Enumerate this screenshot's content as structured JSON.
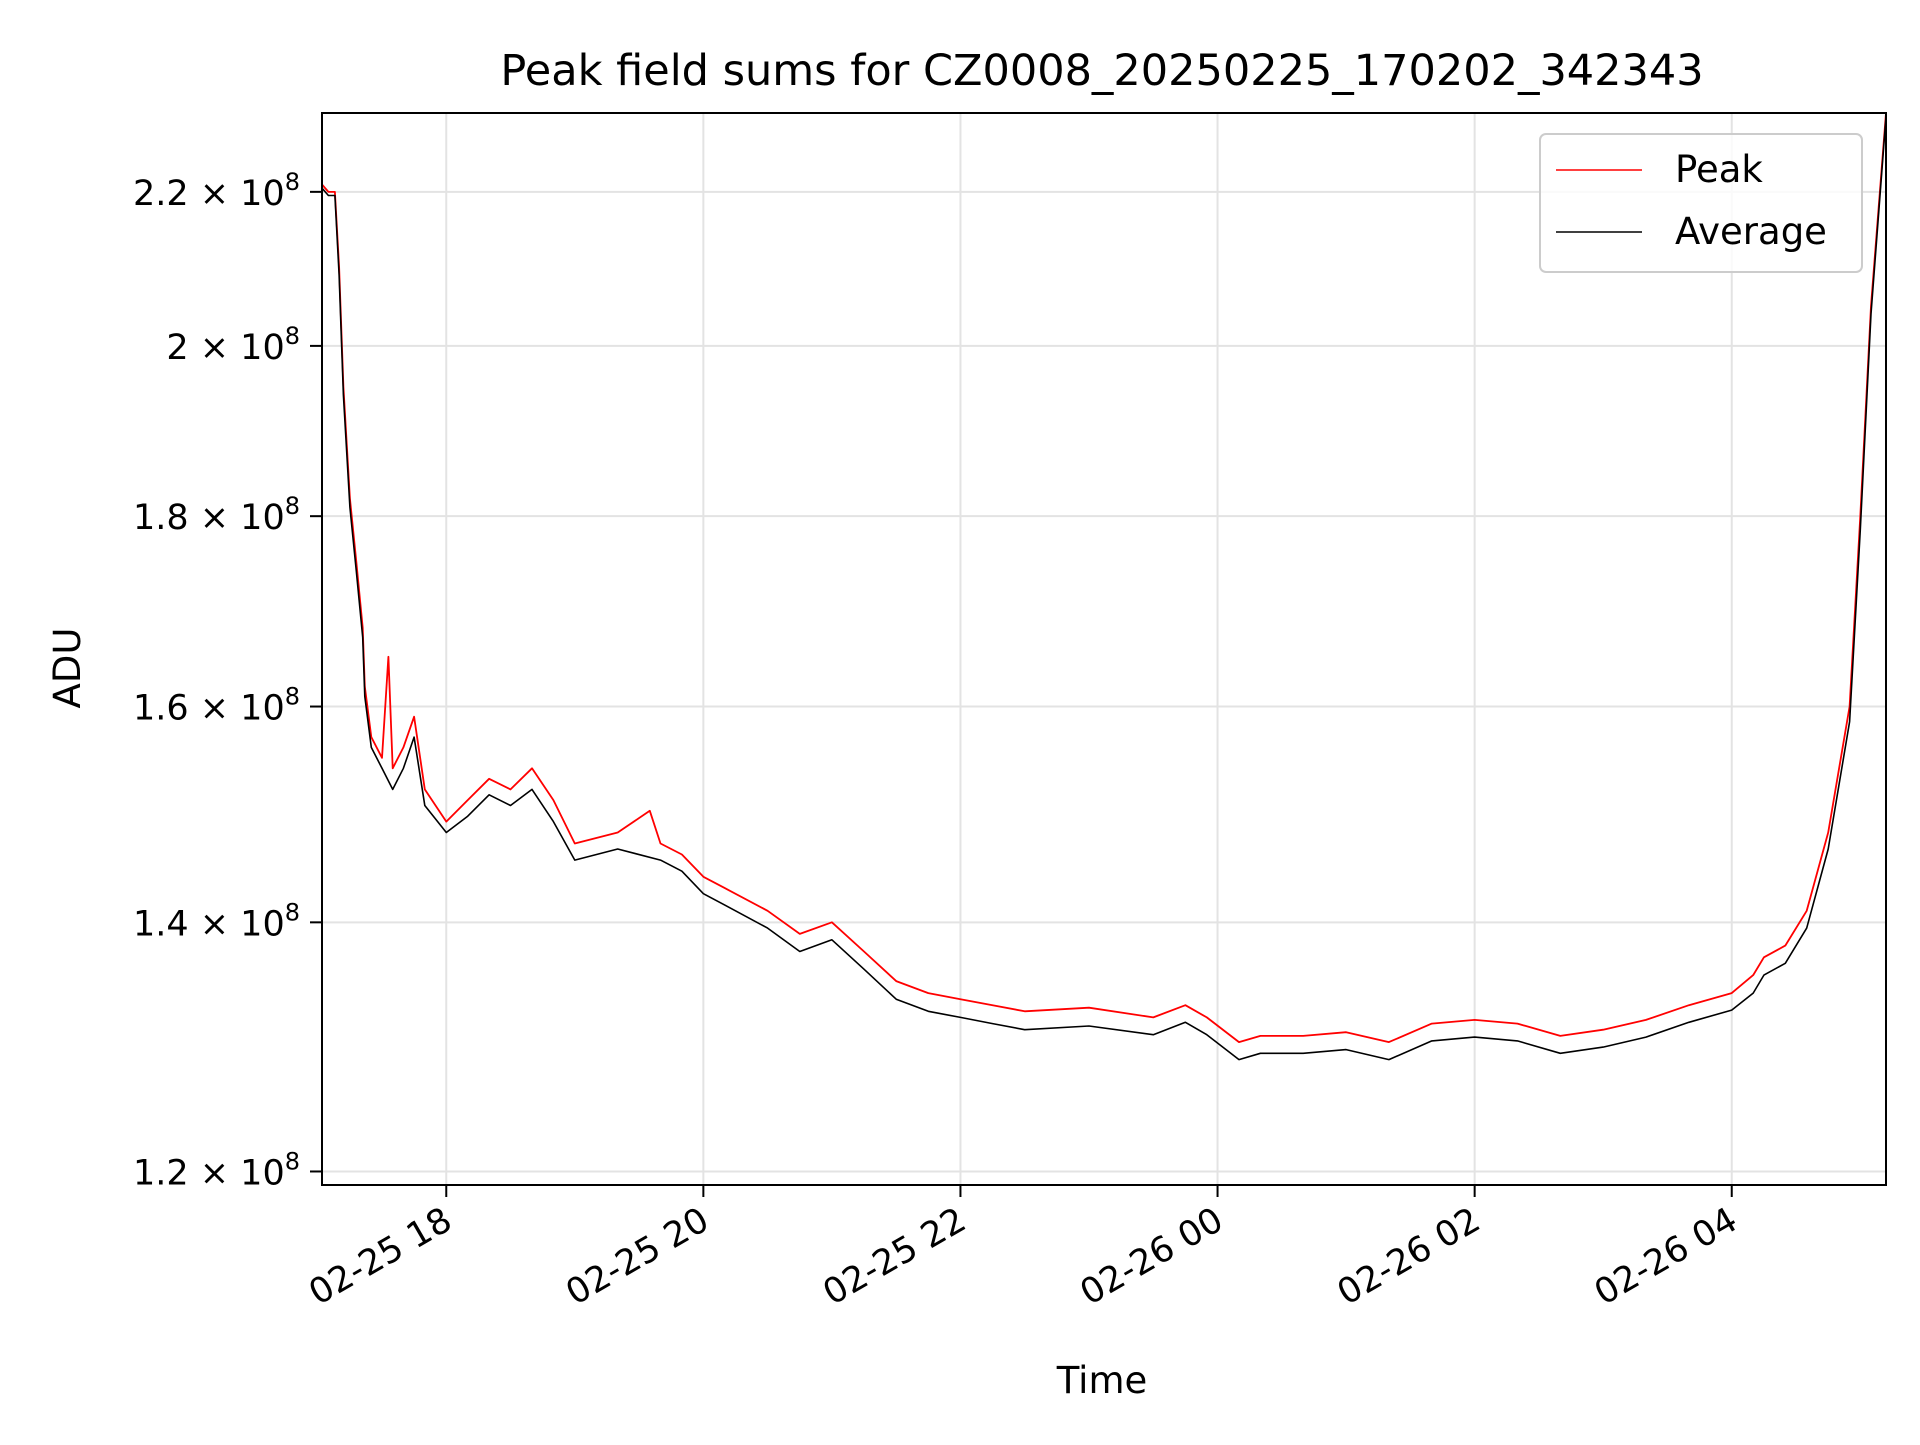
{
  "chart_data": {
    "type": "line",
    "title": "Peak field sums for CZ0008_20250225_170202_342343",
    "xlabel": "Time",
    "ylabel": "ADU",
    "y_scale": "log",
    "ylim": [
      119000000,
      231000000
    ],
    "xlim": [
      "2025-02-25 17:02",
      "2025-02-26 05:12"
    ],
    "grid": true,
    "legend_position": "top-right",
    "x_ticks": [
      {
        "value": "2025-02-25 18:00",
        "label": "02-25 18"
      },
      {
        "value": "2025-02-25 20:00",
        "label": "02-25 20"
      },
      {
        "value": "2025-02-25 22:00",
        "label": "02-25 22"
      },
      {
        "value": "2025-02-26 00:00",
        "label": "02-26 00"
      },
      {
        "value": "2025-02-26 02:00",
        "label": "02-26 02"
      },
      {
        "value": "2025-02-26 04:00",
        "label": "02-26 04"
      }
    ],
    "y_ticks": [
      {
        "value": 120000000,
        "mantissa": "1.2",
        "exponent": "8"
      },
      {
        "value": 140000000,
        "mantissa": "1.4",
        "exponent": "8"
      },
      {
        "value": 160000000,
        "mantissa": "1.6",
        "exponent": "8"
      },
      {
        "value": 180000000,
        "mantissa": "1.8",
        "exponent": "8"
      },
      {
        "value": 200000000,
        "mantissa": "2",
        "exponent": "8"
      },
      {
        "value": 220000000,
        "mantissa": "2.2",
        "exponent": "8"
      }
    ],
    "series": [
      {
        "name": "Peak",
        "color": "#ff0000",
        "points": [
          [
            "2025-02-25 17:02",
            221000000
          ],
          [
            "2025-02-25 17:05",
            220000000
          ],
          [
            "2025-02-25 17:08",
            220000000
          ],
          [
            "2025-02-25 17:10",
            210000000
          ],
          [
            "2025-02-25 17:12",
            195000000
          ],
          [
            "2025-02-25 17:15",
            182000000
          ],
          [
            "2025-02-25 17:18",
            175000000
          ],
          [
            "2025-02-25 17:21",
            168000000
          ],
          [
            "2025-02-25 17:22",
            162000000
          ],
          [
            "2025-02-25 17:25",
            157000000
          ],
          [
            "2025-02-25 17:30",
            155000000
          ],
          [
            "2025-02-25 17:33",
            165000000
          ],
          [
            "2025-02-25 17:35",
            154000000
          ],
          [
            "2025-02-25 17:40",
            156000000
          ],
          [
            "2025-02-25 17:45",
            159000000
          ],
          [
            "2025-02-25 17:50",
            152000000
          ],
          [
            "2025-02-25 18:00",
            149000000
          ],
          [
            "2025-02-25 18:10",
            151000000
          ],
          [
            "2025-02-25 18:20",
            153000000
          ],
          [
            "2025-02-25 18:30",
            152000000
          ],
          [
            "2025-02-25 18:40",
            154000000
          ],
          [
            "2025-02-25 18:50",
            151000000
          ],
          [
            "2025-02-25 19:00",
            147000000
          ],
          [
            "2025-02-25 19:20",
            148000000
          ],
          [
            "2025-02-25 19:35",
            150000000
          ],
          [
            "2025-02-25 19:40",
            147000000
          ],
          [
            "2025-02-25 19:50",
            146000000
          ],
          [
            "2025-02-25 20:00",
            144000000
          ],
          [
            "2025-02-25 20:10",
            143000000
          ],
          [
            "2025-02-25 20:30",
            141000000
          ],
          [
            "2025-02-25 20:45",
            139000000
          ],
          [
            "2025-02-25 21:00",
            140000000
          ],
          [
            "2025-02-25 21:15",
            137500000
          ],
          [
            "2025-02-25 21:30",
            135000000
          ],
          [
            "2025-02-25 21:45",
            134000000
          ],
          [
            "2025-02-25 22:00",
            133500000
          ],
          [
            "2025-02-25 22:15",
            133000000
          ],
          [
            "2025-02-25 22:30",
            132500000
          ],
          [
            "2025-02-25 23:00",
            132800000
          ],
          [
            "2025-02-25 23:30",
            132000000
          ],
          [
            "2025-02-25 23:45",
            133000000
          ],
          [
            "2025-02-25 23:55",
            132000000
          ],
          [
            "2025-02-26 00:10",
            130000000
          ],
          [
            "2025-02-26 00:20",
            130500000
          ],
          [
            "2025-02-26 00:40",
            130500000
          ],
          [
            "2025-02-26 01:00",
            130800000
          ],
          [
            "2025-02-26 01:20",
            130000000
          ],
          [
            "2025-02-26 01:40",
            131500000
          ],
          [
            "2025-02-26 02:00",
            131800000
          ],
          [
            "2025-02-26 02:20",
            131500000
          ],
          [
            "2025-02-26 02:40",
            130500000
          ],
          [
            "2025-02-26 03:00",
            131000000
          ],
          [
            "2025-02-26 03:20",
            131800000
          ],
          [
            "2025-02-26 03:40",
            133000000
          ],
          [
            "2025-02-26 04:00",
            134000000
          ],
          [
            "2025-02-26 04:10",
            135500000
          ],
          [
            "2025-02-26 04:15",
            137000000
          ],
          [
            "2025-02-26 04:25",
            138000000
          ],
          [
            "2025-02-26 04:35",
            141000000
          ],
          [
            "2025-02-26 04:45",
            148000000
          ],
          [
            "2025-02-26 04:55",
            160000000
          ],
          [
            "2025-02-26 05:00",
            180000000
          ],
          [
            "2025-02-26 05:05",
            205000000
          ],
          [
            "2025-02-26 05:12",
            231000000
          ]
        ]
      },
      {
        "name": "Average",
        "color": "#000000",
        "points": [
          [
            "2025-02-25 17:02",
            220500000
          ],
          [
            "2025-02-25 17:05",
            219500000
          ],
          [
            "2025-02-25 17:08",
            219500000
          ],
          [
            "2025-02-25 17:10",
            209000000
          ],
          [
            "2025-02-25 17:12",
            194000000
          ],
          [
            "2025-02-25 17:15",
            181000000
          ],
          [
            "2025-02-25 17:18",
            174000000
          ],
          [
            "2025-02-25 17:21",
            167000000
          ],
          [
            "2025-02-25 17:22",
            161000000
          ],
          [
            "2025-02-25 17:25",
            156000000
          ],
          [
            "2025-02-25 17:30",
            154000000
          ],
          [
            "2025-02-25 17:35",
            152000000
          ],
          [
            "2025-02-25 17:40",
            154000000
          ],
          [
            "2025-02-25 17:45",
            157000000
          ],
          [
            "2025-02-25 17:50",
            150500000
          ],
          [
            "2025-02-25 18:00",
            148000000
          ],
          [
            "2025-02-25 18:10",
            149500000
          ],
          [
            "2025-02-25 18:20",
            151500000
          ],
          [
            "2025-02-25 18:30",
            150500000
          ],
          [
            "2025-02-25 18:40",
            152000000
          ],
          [
            "2025-02-25 18:50",
            149000000
          ],
          [
            "2025-02-25 19:00",
            145500000
          ],
          [
            "2025-02-25 19:20",
            146500000
          ],
          [
            "2025-02-25 19:40",
            145500000
          ],
          [
            "2025-02-25 19:50",
            144500000
          ],
          [
            "2025-02-25 20:00",
            142500000
          ],
          [
            "2025-02-25 20:10",
            141500000
          ],
          [
            "2025-02-25 20:30",
            139500000
          ],
          [
            "2025-02-25 20:45",
            137500000
          ],
          [
            "2025-02-25 21:00",
            138500000
          ],
          [
            "2025-02-25 21:15",
            136000000
          ],
          [
            "2025-02-25 21:30",
            133500000
          ],
          [
            "2025-02-25 21:45",
            132500000
          ],
          [
            "2025-02-25 22:00",
            132000000
          ],
          [
            "2025-02-25 22:15",
            131500000
          ],
          [
            "2025-02-25 22:30",
            131000000
          ],
          [
            "2025-02-25 23:00",
            131300000
          ],
          [
            "2025-02-25 23:30",
            130600000
          ],
          [
            "2025-02-25 23:45",
            131600000
          ],
          [
            "2025-02-25 23:55",
            130600000
          ],
          [
            "2025-02-26 00:10",
            128600000
          ],
          [
            "2025-02-26 00:20",
            129100000
          ],
          [
            "2025-02-26 00:40",
            129100000
          ],
          [
            "2025-02-26 01:00",
            129400000
          ],
          [
            "2025-02-26 01:20",
            128600000
          ],
          [
            "2025-02-26 01:40",
            130100000
          ],
          [
            "2025-02-26 02:00",
            130400000
          ],
          [
            "2025-02-26 02:20",
            130100000
          ],
          [
            "2025-02-26 02:40",
            129100000
          ],
          [
            "2025-02-26 03:00",
            129600000
          ],
          [
            "2025-02-26 03:20",
            130400000
          ],
          [
            "2025-02-26 03:40",
            131600000
          ],
          [
            "2025-02-26 04:00",
            132600000
          ],
          [
            "2025-02-26 04:10",
            134000000
          ],
          [
            "2025-02-26 04:15",
            135500000
          ],
          [
            "2025-02-26 04:25",
            136500000
          ],
          [
            "2025-02-26 04:35",
            139500000
          ],
          [
            "2025-02-26 04:45",
            146500000
          ],
          [
            "2025-02-26 04:55",
            158500000
          ],
          [
            "2025-02-26 05:00",
            178500000
          ],
          [
            "2025-02-26 05:05",
            204000000
          ],
          [
            "2025-02-26 05:12",
            230500000
          ]
        ]
      }
    ]
  }
}
